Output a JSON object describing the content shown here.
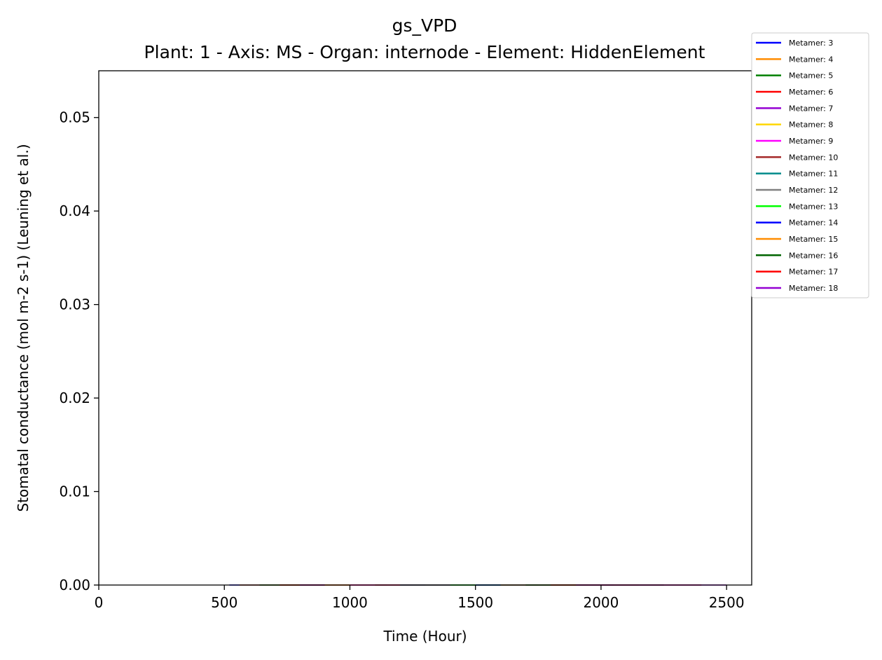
{
  "chart_data": {
    "type": "line",
    "title": "gs_VPD",
    "subtitle": "Plant: 1 - Axis: MS - Organ: internode - Element: HiddenElement",
    "xlabel": "Time (Hour)",
    "ylabel": "Stomatal conductance (mol m-2 s-1) (Leuning et al.)",
    "xlim": [
      0,
      2600
    ],
    "ylim": [
      0,
      0.055
    ],
    "xticks": [
      0,
      500,
      1000,
      1500,
      2000,
      2500
    ],
    "xtick_labels": [
      "0",
      "500",
      "1000",
      "1500",
      "2000",
      "2500"
    ],
    "yticks": [
      0.0,
      0.01,
      0.02,
      0.03,
      0.04,
      0.05
    ],
    "ytick_labels": [
      "0.00",
      "0.01",
      "0.02",
      "0.03",
      "0.04",
      "0.05"
    ],
    "grid": false,
    "legend_position": "outside top-right",
    "series": [
      {
        "name": "Metamer: 3",
        "color": "#0000ff",
        "x": [
          520,
          1000
        ],
        "y": [
          0,
          0
        ]
      },
      {
        "name": "Metamer: 4",
        "color": "#ff8c00",
        "x": [
          560,
          1050
        ],
        "y": [
          0,
          0
        ]
      },
      {
        "name": "Metamer: 5",
        "color": "#008000",
        "x": [
          640,
          1150
        ],
        "y": [
          0,
          0
        ]
      },
      {
        "name": "Metamer: 6",
        "color": "#ff0000",
        "x": [
          720,
          1250
        ],
        "y": [
          0,
          0
        ]
      },
      {
        "name": "Metamer: 7",
        "color": "#9400d3",
        "x": [
          800,
          1350
        ],
        "y": [
          0,
          0
        ]
      },
      {
        "name": "Metamer: 8",
        "color": "#ffd700",
        "x": [
          900,
          1450
        ],
        "y": [
          0,
          0
        ]
      },
      {
        "name": "Metamer: 9",
        "color": "#ff00ff",
        "x": [
          1000,
          1550
        ],
        "y": [
          0,
          0
        ]
      },
      {
        "name": "Metamer: 10",
        "color": "#a52a2a",
        "x": [
          1100,
          1650
        ],
        "y": [
          0,
          0
        ]
      },
      {
        "name": "Metamer: 11",
        "color": "#008b8b",
        "x": [
          1200,
          1750
        ],
        "y": [
          0,
          0
        ]
      },
      {
        "name": "Metamer: 12",
        "color": "#808080",
        "x": [
          1300,
          1850
        ],
        "y": [
          0,
          0
        ]
      },
      {
        "name": "Metamer: 13",
        "color": "#00ff00",
        "x": [
          1400,
          1950
        ],
        "y": [
          0,
          0
        ]
      },
      {
        "name": "Metamer: 14",
        "color": "#0000ff",
        "x": [
          1500,
          2050
        ],
        "y": [
          0,
          0
        ]
      },
      {
        "name": "Metamer: 15",
        "color": "#ff8c00",
        "x": [
          1600,
          2150
        ],
        "y": [
          0,
          0
        ]
      },
      {
        "name": "Metamer: 16",
        "color": "#006400",
        "x": [
          1700,
          2250
        ],
        "y": [
          0,
          0
        ]
      },
      {
        "name": "Metamer: 17",
        "color": "#ff0000",
        "x": [
          1800,
          2400
        ],
        "y": [
          0,
          0
        ]
      },
      {
        "name": "Metamer: 18",
        "color": "#9400d3",
        "x": [
          1900,
          2500
        ],
        "y": [
          0,
          0
        ]
      }
    ]
  }
}
